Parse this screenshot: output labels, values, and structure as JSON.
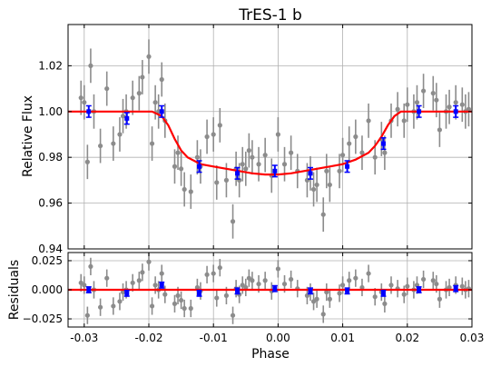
{
  "chart_data": {
    "type": "scatter",
    "title": "TrES-1 b",
    "xlabel": "Phase",
    "xlim": [
      -0.0325,
      0.03
    ],
    "x_ticks": [
      -0.03,
      -0.02,
      -0.01,
      0.0,
      0.01,
      0.02,
      0.03
    ],
    "x_tick_labels": [
      "-0.03",
      "-0.02",
      "-0.01",
      "0.00",
      "0.01",
      "0.02",
      "0.03"
    ],
    "grid": true,
    "colors": {
      "data": "#8c8c8c",
      "binned": "#0000ff",
      "model": "#ff0000",
      "grid": "#b0b0b0"
    },
    "panels": [
      {
        "name": "flux",
        "ylabel": "Relative Flux",
        "ylim": [
          0.94,
          1.038
        ],
        "y_ticks": [
          0.94,
          0.96,
          0.98,
          1.0,
          1.02
        ],
        "y_tick_labels": [
          "0.94",
          "0.96",
          "0.98",
          "1.00",
          "1.02"
        ],
        "data": {
          "x": [
            -0.0305,
            -0.03,
            -0.0295,
            -0.029,
            -0.0285,
            -0.0275,
            -0.0265,
            -0.0255,
            -0.0245,
            -0.024,
            -0.0235,
            -0.0225,
            -0.0215,
            -0.021,
            -0.02,
            -0.0195,
            -0.019,
            -0.0185,
            -0.018,
            -0.0175,
            -0.016,
            -0.0155,
            -0.015,
            -0.0145,
            -0.0135,
            -0.0125,
            -0.012,
            -0.011,
            -0.01,
            -0.0095,
            -0.009,
            -0.008,
            -0.007,
            -0.0065,
            -0.006,
            -0.0055,
            -0.005,
            -0.0045,
            -0.004,
            -0.003,
            -0.002,
            -0.001,
            0.0,
            0.001,
            0.002,
            0.003,
            0.0045,
            0.005,
            0.0055,
            0.006,
            0.007,
            0.0075,
            0.008,
            0.0095,
            0.01,
            0.011,
            0.012,
            0.013,
            0.014,
            0.015,
            0.016,
            0.0165,
            0.0175,
            0.0185,
            0.0195,
            0.02,
            0.021,
            0.0215,
            0.0225,
            0.024,
            0.0245,
            0.025,
            0.026,
            0.0265,
            0.0275,
            0.0285,
            0.029,
            0.0295
          ],
          "y": [
            1.006,
            1.004,
            0.978,
            1.02,
            1.0,
            0.985,
            1.01,
            0.986,
            0.99,
            0.998,
            1.0,
            1.006,
            1.008,
            1.015,
            1.024,
            0.986,
            1.004,
            1.0,
            1.014,
            0.996,
            0.976,
            0.982,
            0.975,
            0.966,
            0.965,
            0.98,
            0.976,
            0.989,
            0.99,
            0.969,
            0.994,
            0.97,
            0.952,
            0.975,
            0.97,
            0.977,
            0.975,
            0.983,
            0.98,
            0.977,
            0.981,
            0.972,
            0.99,
            0.977,
            0.982,
            0.974,
            0.97,
            0.973,
            0.966,
            0.968,
            0.955,
            0.974,
            0.968,
            0.974,
            0.981,
            0.986,
            0.989,
            0.982,
            0.996,
            0.98,
            0.988,
            0.982,
            0.996,
            1.001,
            0.996,
            1.003,
            1.0,
            1.004,
            1.009,
            1.008,
            1.005,
            0.992,
            1.0,
            1.002,
            1.004,
            1.003,
            1.0,
            1.001
          ],
          "yerr": 0.0075
        },
        "binned": {
          "x": [
            -0.0293,
            -0.0234,
            -0.018,
            -0.0122,
            -0.0063,
            -0.0005,
            0.005,
            0.0107,
            0.0163,
            0.0218,
            0.0275
          ],
          "y": [
            1.0,
            0.997,
            1.0,
            0.976,
            0.973,
            0.974,
            0.973,
            0.976,
            0.986,
            1.0,
            1.0
          ],
          "yerr": 0.0025
        },
        "model": {
          "x": [
            -0.0325,
            -0.0195,
            -0.018,
            -0.017,
            -0.016,
            -0.015,
            -0.014,
            -0.012,
            -0.01,
            -0.008,
            -0.006,
            -0.004,
            -0.002,
            0.0,
            0.002,
            0.004,
            0.006,
            0.008,
            0.01,
            0.012,
            0.014,
            0.015,
            0.016,
            0.017,
            0.018,
            0.019,
            0.02,
            0.03
          ],
          "y": [
            1.0,
            1.0,
            0.998,
            0.994,
            0.988,
            0.983,
            0.98,
            0.977,
            0.976,
            0.975,
            0.974,
            0.973,
            0.9725,
            0.9725,
            0.973,
            0.974,
            0.975,
            0.976,
            0.977,
            0.979,
            0.982,
            0.985,
            0.989,
            0.994,
            0.998,
            1.0,
            1.0,
            1.0
          ]
        }
      },
      {
        "name": "residuals",
        "ylabel": "Residuals",
        "ylim": [
          -0.032,
          0.032
        ],
        "y_ticks": [
          -0.025,
          0.0,
          0.025
        ],
        "y_tick_labels": [
          "−0.025",
          "0.000",
          "0.025"
        ],
        "data": {
          "x": [
            -0.0305,
            -0.03,
            -0.0295,
            -0.029,
            -0.0285,
            -0.0275,
            -0.0265,
            -0.0255,
            -0.0245,
            -0.024,
            -0.0235,
            -0.0225,
            -0.0215,
            -0.021,
            -0.02,
            -0.0195,
            -0.019,
            -0.0185,
            -0.018,
            -0.0175,
            -0.016,
            -0.0155,
            -0.015,
            -0.0145,
            -0.0135,
            -0.0125,
            -0.012,
            -0.011,
            -0.01,
            -0.0095,
            -0.009,
            -0.008,
            -0.007,
            -0.0065,
            -0.006,
            -0.0055,
            -0.005,
            -0.0045,
            -0.004,
            -0.003,
            -0.002,
            -0.001,
            0.0,
            0.001,
            0.002,
            0.003,
            0.0045,
            0.005,
            0.0055,
            0.006,
            0.007,
            0.0075,
            0.008,
            0.0095,
            0.01,
            0.011,
            0.012,
            0.013,
            0.014,
            0.015,
            0.016,
            0.0165,
            0.0175,
            0.0185,
            0.0195,
            0.02,
            0.021,
            0.0215,
            0.0225,
            0.024,
            0.0245,
            0.025,
            0.026,
            0.0265,
            0.0275,
            0.0285,
            0.029,
            0.0295
          ],
          "y": [
            0.006,
            0.004,
            -0.022,
            0.02,
            0.0,
            -0.015,
            0.01,
            -0.014,
            -0.01,
            -0.002,
            0.0,
            0.006,
            0.008,
            0.015,
            0.024,
            -0.014,
            0.004,
            0.0,
            0.014,
            -0.004,
            -0.012,
            -0.005,
            -0.009,
            -0.016,
            -0.016,
            0.002,
            -0.001,
            0.013,
            0.014,
            -0.007,
            0.019,
            -0.005,
            -0.022,
            0.001,
            -0.004,
            0.004,
            0.002,
            0.01,
            0.008,
            0.005,
            0.008,
            -0.001,
            0.018,
            0.005,
            0.009,
            0.001,
            -0.005,
            -0.002,
            -0.01,
            -0.008,
            -0.021,
            -0.002,
            -0.008,
            -0.003,
            0.004,
            0.008,
            0.01,
            0.002,
            0.014,
            -0.006,
            -0.002,
            -0.012,
            0.004,
            0.001,
            -0.004,
            0.003,
            0.0,
            0.004,
            0.009,
            0.008,
            0.005,
            -0.008,
            0.0,
            0.002,
            0.004,
            0.003,
            0.0,
            0.001
          ],
          "yerr": 0.0075
        },
        "binned": {
          "x": [
            -0.0293,
            -0.0234,
            -0.018,
            -0.0122,
            -0.0063,
            -0.0005,
            0.005,
            0.0107,
            0.0163,
            0.0218,
            0.0275
          ],
          "y": [
            0.0,
            -0.003,
            0.004,
            -0.003,
            -0.001,
            0.001,
            -0.001,
            -0.001,
            -0.003,
            0.0,
            0.001
          ],
          "yerr": 0.0025
        },
        "model": {
          "x": [
            -0.0325,
            0.03
          ],
          "y": [
            0.0,
            0.0
          ]
        }
      }
    ]
  }
}
